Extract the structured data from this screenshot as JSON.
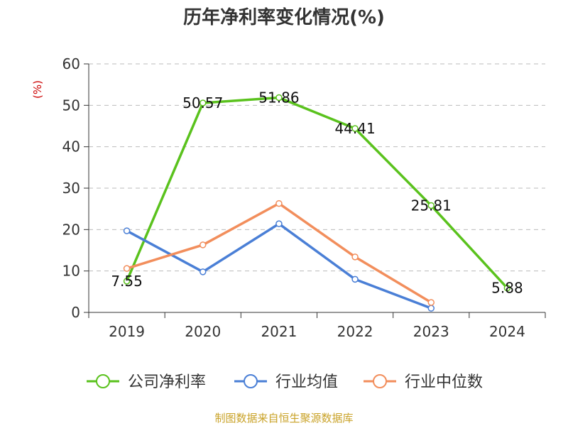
{
  "chart_data": {
    "type": "line",
    "title": "历年净利率变化情况(%)",
    "ylabel": "(%)",
    "xlabel": "",
    "categories": [
      "2019",
      "2020",
      "2021",
      "2022",
      "2023",
      "2024"
    ],
    "ylim": [
      0,
      60
    ],
    "yticks": [
      0,
      10,
      20,
      30,
      40,
      50,
      60
    ],
    "grid": true,
    "legend_position": "bottom",
    "series": [
      {
        "name": "公司净利率",
        "color": "#5ac21d",
        "values": [
          7.55,
          50.57,
          51.86,
          44.41,
          25.81,
          5.88
        ],
        "labels": [
          "7.55",
          "50.57",
          "51.86",
          "44.41",
          "25.81",
          "5.88"
        ]
      },
      {
        "name": "行业均值",
        "color": "#4a7fd6",
        "values": [
          19.7,
          9.8,
          21.4,
          8.0,
          1.0,
          null
        ]
      },
      {
        "name": "行业中位数",
        "color": "#f28e5c",
        "values": [
          10.6,
          16.3,
          26.3,
          13.4,
          2.4,
          null
        ]
      }
    ]
  },
  "footer": {
    "source": "制图数据来自恒生聚源数据库"
  }
}
